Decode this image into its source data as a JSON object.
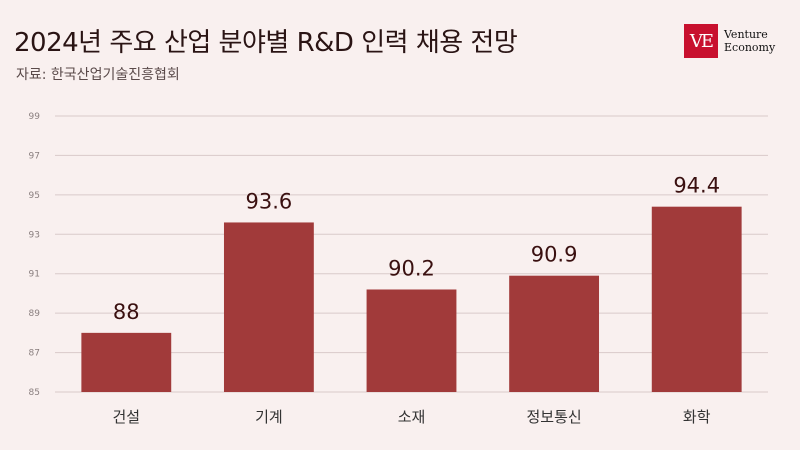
{
  "title": "2024년 주요 산업 분야별 R&D 인력 채용 전망",
  "source": "자료: 한국산업기술진흥협회",
  "logo": {
    "mark": "VE",
    "line1": "Venture",
    "line2": "Economy"
  },
  "colors": {
    "bar": "#a13a3a",
    "background": "#f9f0ef"
  },
  "chart_data": {
    "type": "bar",
    "title": "2024년 주요 산업 분야별 R&D 인력 채용 전망",
    "categories": [
      "건설",
      "기계",
      "소재",
      "정보통신",
      "화학"
    ],
    "values": [
      88,
      93.6,
      90.2,
      90.9,
      94.4
    ],
    "ylim": [
      85,
      99
    ],
    "yticks": [
      85,
      87,
      89,
      91,
      93,
      95,
      97,
      99
    ],
    "grid": true,
    "xlabel": "",
    "ylabel": ""
  }
}
